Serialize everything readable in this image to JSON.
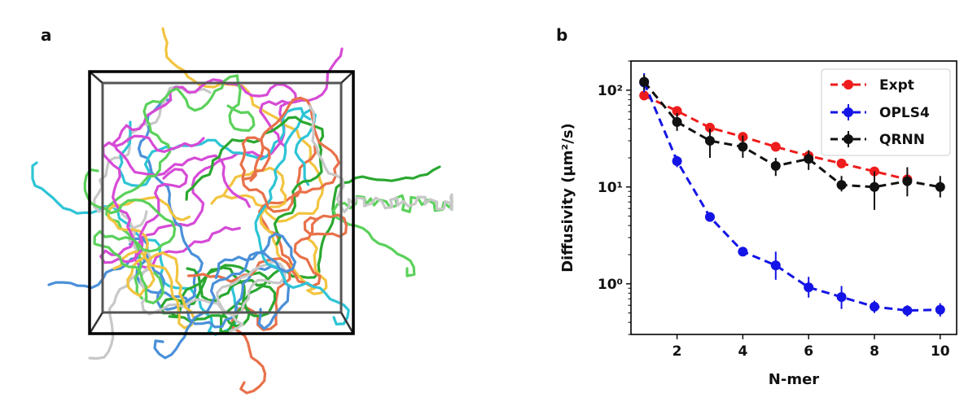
{
  "panels": {
    "a_label": "a",
    "b_label": "b"
  },
  "colors": {
    "expt": "#ee1c1c",
    "opls4": "#1414e6",
    "qrnn": "#111111",
    "molecule_palette": [
      "#2ec4d6",
      "#f2c440",
      "#d64bd6",
      "#2aa830",
      "#4a90d9",
      "#e8714a",
      "#c8c8c8",
      "#5bd15b"
    ]
  },
  "chart_data": {
    "type": "line",
    "xlabel": "N-mer",
    "ylabel": "Diffusivity (μm²/s)",
    "yscale": "log",
    "xlim": [
      0.6,
      10.5
    ],
    "ylim": [
      0.3,
      200
    ],
    "xticks": [
      2,
      4,
      6,
      8,
      10
    ],
    "yticks": [
      {
        "value": 1,
        "label": "10⁰"
      },
      {
        "value": 10,
        "label": "10¹"
      },
      {
        "value": 100,
        "label": "10²"
      }
    ],
    "legend_position": "top-right",
    "series": [
      {
        "name": "Expt",
        "style": "dashed-with-markers",
        "x": [
          1,
          2,
          3,
          4,
          5,
          6,
          7,
          8,
          9
        ],
        "y": [
          88,
          61,
          41,
          33,
          26,
          21,
          17.5,
          14.5,
          12
        ]
      },
      {
        "name": "OPLS4",
        "style": "dashed-with-markers-errorbars",
        "x": [
          1,
          2,
          3,
          4,
          5,
          6,
          7,
          8,
          9,
          10
        ],
        "y": [
          120,
          18.5,
          4.9,
          2.15,
          1.55,
          0.92,
          0.73,
          0.58,
          0.53,
          0.54
        ],
        "err_low": [
          95,
          16,
          4.5,
          1.95,
          1.1,
          0.72,
          0.55,
          0.5,
          0.46,
          0.46
        ],
        "err_high": [
          150,
          21,
          5.3,
          2.35,
          2.15,
          1.18,
          0.95,
          0.67,
          0.6,
          0.63
        ]
      },
      {
        "name": "QRNN",
        "style": "dashed-with-markers-errorbars",
        "x": [
          1,
          2,
          3,
          4,
          5,
          6,
          7,
          8,
          9,
          10
        ],
        "y": [
          122,
          47,
          30,
          26,
          16.5,
          19.5,
          10.5,
          10,
          11.5,
          10
        ],
        "err_low": [
          100,
          38,
          20,
          20,
          13,
          15,
          9,
          5.8,
          8,
          7.8
        ],
        "err_high": [
          145,
          58,
          40,
          34,
          20,
          24,
          13,
          14.5,
          16,
          13
        ]
      }
    ]
  }
}
